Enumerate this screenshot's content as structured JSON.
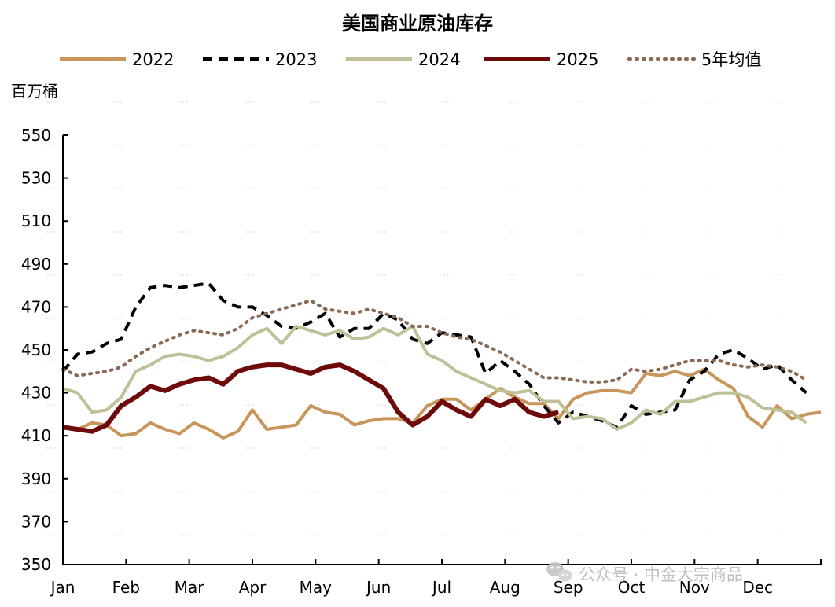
{
  "chart_data": {
    "type": "line",
    "title": "美国商业原油库存",
    "ylabel": "百万桶",
    "xlabel": "",
    "ylim": [
      350,
      550
    ],
    "yticks": [
      350,
      370,
      390,
      410,
      430,
      450,
      470,
      490,
      510,
      530,
      550
    ],
    "xlim": [
      1,
      52
    ],
    "month_labels": [
      "Jan",
      "Feb",
      "Mar",
      "Apr",
      "May",
      "Jun",
      "Jul",
      "Aug",
      "Sep",
      "Oct",
      "Nov",
      "Dec"
    ],
    "legend_position": "top",
    "grid": false,
    "series": [
      {
        "name": "2022",
        "color": "#c8955a",
        "style": "solid",
        "points": [
          [
            1,
            414
          ],
          [
            2,
            413
          ],
          [
            3,
            416
          ],
          [
            4,
            415
          ],
          [
            5,
            410
          ],
          [
            6,
            411
          ],
          [
            7,
            416
          ],
          [
            8,
            413
          ],
          [
            9,
            411
          ],
          [
            10,
            416
          ],
          [
            11,
            413
          ],
          [
            12,
            409
          ],
          [
            13,
            412
          ],
          [
            14,
            422
          ],
          [
            15,
            413
          ],
          [
            16,
            414
          ],
          [
            17,
            415
          ],
          [
            18,
            424
          ],
          [
            19,
            421
          ],
          [
            20,
            420
          ],
          [
            21,
            415
          ],
          [
            22,
            417
          ],
          [
            23,
            418
          ],
          [
            24,
            418
          ],
          [
            25,
            416
          ],
          [
            26,
            424
          ],
          [
            27,
            427
          ],
          [
            28,
            427
          ],
          [
            29,
            422
          ],
          [
            30,
            427
          ],
          [
            31,
            432
          ],
          [
            32,
            428
          ],
          [
            33,
            425
          ],
          [
            34,
            425
          ],
          [
            35,
            418
          ],
          [
            36,
            427
          ],
          [
            37,
            430
          ],
          [
            38,
            431
          ],
          [
            39,
            431
          ],
          [
            40,
            430
          ],
          [
            41,
            439
          ],
          [
            42,
            438
          ],
          [
            43,
            440
          ],
          [
            44,
            438
          ],
          [
            45,
            441
          ],
          [
            46,
            436
          ],
          [
            47,
            432
          ],
          [
            48,
            419
          ],
          [
            49,
            414
          ],
          [
            50,
            424
          ],
          [
            51,
            418
          ],
          [
            52,
            420
          ],
          [
            53,
            421
          ]
        ]
      },
      {
        "name": "2023",
        "color": "#000000",
        "style": "dashed",
        "points": [
          [
            1,
            440
          ],
          [
            2,
            448
          ],
          [
            3,
            449
          ],
          [
            4,
            453
          ],
          [
            5,
            455
          ],
          [
            6,
            470
          ],
          [
            7,
            479
          ],
          [
            8,
            480
          ],
          [
            9,
            479
          ],
          [
            10,
            480
          ],
          [
            11,
            481
          ],
          [
            12,
            473
          ],
          [
            13,
            470
          ],
          [
            14,
            470
          ],
          [
            15,
            466
          ],
          [
            16,
            461
          ],
          [
            17,
            460
          ],
          [
            18,
            463
          ],
          [
            19,
            467
          ],
          [
            20,
            456
          ],
          [
            21,
            460
          ],
          [
            22,
            460
          ],
          [
            23,
            467
          ],
          [
            24,
            464
          ],
          [
            25,
            455
          ],
          [
            26,
            453
          ],
          [
            27,
            458
          ],
          [
            28,
            457
          ],
          [
            29,
            456
          ],
          [
            30,
            439
          ],
          [
            31,
            445
          ],
          [
            32,
            440
          ],
          [
            33,
            434
          ],
          [
            34,
            424
          ],
          [
            35,
            416
          ],
          [
            36,
            421
          ],
          [
            37,
            419
          ],
          [
            38,
            417
          ],
          [
            39,
            414
          ],
          [
            40,
            424
          ],
          [
            41,
            420
          ],
          [
            42,
            421
          ],
          [
            43,
            422
          ],
          [
            44,
            436
          ],
          [
            45,
            440
          ],
          [
            46,
            448
          ],
          [
            47,
            450
          ],
          [
            48,
            446
          ],
          [
            49,
            441
          ],
          [
            50,
            443
          ],
          [
            51,
            436
          ],
          [
            52,
            430
          ]
        ]
      },
      {
        "name": "2024",
        "color": "#bfbf98",
        "style": "solid",
        "points": [
          [
            1,
            432
          ],
          [
            2,
            430
          ],
          [
            3,
            421
          ],
          [
            4,
            422
          ],
          [
            5,
            428
          ],
          [
            6,
            440
          ],
          [
            7,
            443
          ],
          [
            8,
            447
          ],
          [
            9,
            448
          ],
          [
            10,
            447
          ],
          [
            11,
            445
          ],
          [
            12,
            447
          ],
          [
            13,
            451
          ],
          [
            14,
            457
          ],
          [
            15,
            460
          ],
          [
            16,
            453
          ],
          [
            17,
            461
          ],
          [
            18,
            459
          ],
          [
            19,
            457
          ],
          [
            20,
            459
          ],
          [
            21,
            455
          ],
          [
            22,
            456
          ],
          [
            23,
            460
          ],
          [
            24,
            457
          ],
          [
            25,
            461
          ],
          [
            26,
            448
          ],
          [
            27,
            445
          ],
          [
            28,
            440
          ],
          [
            29,
            437
          ],
          [
            30,
            434
          ],
          [
            31,
            431
          ],
          [
            32,
            430
          ],
          [
            33,
            431
          ],
          [
            34,
            426
          ],
          [
            35,
            426
          ],
          [
            36,
            418
          ],
          [
            37,
            419
          ],
          [
            38,
            418
          ],
          [
            39,
            413
          ],
          [
            40,
            416
          ],
          [
            41,
            422
          ],
          [
            42,
            420
          ],
          [
            43,
            426
          ],
          [
            44,
            426
          ],
          [
            45,
            428
          ],
          [
            46,
            430
          ],
          [
            47,
            430
          ],
          [
            48,
            428
          ],
          [
            49,
            423
          ],
          [
            50,
            422
          ],
          [
            51,
            421
          ],
          [
            52,
            416
          ]
        ]
      },
      {
        "name": "2025",
        "color": "#6e0a0a",
        "style": "solid",
        "points": [
          [
            1,
            414
          ],
          [
            2,
            413
          ],
          [
            3,
            412
          ],
          [
            4,
            415
          ],
          [
            5,
            424
          ],
          [
            6,
            428
          ],
          [
            7,
            433
          ],
          [
            8,
            431
          ],
          [
            9,
            434
          ],
          [
            10,
            436
          ],
          [
            11,
            437
          ],
          [
            12,
            434
          ],
          [
            13,
            440
          ],
          [
            14,
            442
          ],
          [
            15,
            443
          ],
          [
            16,
            443
          ],
          [
            17,
            441
          ],
          [
            18,
            439
          ],
          [
            19,
            442
          ],
          [
            20,
            443
          ],
          [
            21,
            440
          ],
          [
            22,
            436
          ],
          [
            23,
            432
          ],
          [
            24,
            421
          ],
          [
            25,
            415
          ],
          [
            26,
            419
          ],
          [
            27,
            426
          ],
          [
            28,
            422
          ],
          [
            29,
            419
          ],
          [
            30,
            427
          ],
          [
            31,
            424
          ],
          [
            32,
            427
          ],
          [
            33,
            421
          ],
          [
            34,
            419
          ],
          [
            35,
            421
          ]
        ]
      },
      {
        "name": "5年均值",
        "color": "#8b6a55",
        "style": "dotted",
        "points": [
          [
            1,
            441
          ],
          [
            2,
            438
          ],
          [
            3,
            439
          ],
          [
            4,
            440
          ],
          [
            5,
            442
          ],
          [
            6,
            447
          ],
          [
            7,
            451
          ],
          [
            8,
            454
          ],
          [
            9,
            457
          ],
          [
            10,
            459
          ],
          [
            11,
            458
          ],
          [
            12,
            457
          ],
          [
            13,
            460
          ],
          [
            14,
            465
          ],
          [
            15,
            467
          ],
          [
            16,
            469
          ],
          [
            17,
            471
          ],
          [
            18,
            473
          ],
          [
            19,
            469
          ],
          [
            20,
            468
          ],
          [
            21,
            467
          ],
          [
            22,
            469
          ],
          [
            23,
            467
          ],
          [
            24,
            465
          ],
          [
            25,
            461
          ],
          [
            26,
            461
          ],
          [
            27,
            458
          ],
          [
            28,
            456
          ],
          [
            29,
            455
          ],
          [
            30,
            452
          ],
          [
            31,
            449
          ],
          [
            32,
            445
          ],
          [
            33,
            441
          ],
          [
            34,
            437
          ],
          [
            35,
            437
          ],
          [
            36,
            436
          ],
          [
            37,
            435
          ],
          [
            38,
            435
          ],
          [
            39,
            436
          ],
          [
            40,
            441
          ],
          [
            41,
            440
          ],
          [
            42,
            441
          ],
          [
            43,
            443
          ],
          [
            44,
            445
          ],
          [
            45,
            445
          ],
          [
            46,
            445
          ],
          [
            47,
            443
          ],
          [
            48,
            442
          ],
          [
            49,
            443
          ],
          [
            50,
            442
          ],
          [
            51,
            440
          ],
          [
            52,
            436
          ]
        ]
      }
    ]
  },
  "watermark": {
    "icon": "wechat-icon",
    "text": "公众号 · 中金大宗商品"
  }
}
